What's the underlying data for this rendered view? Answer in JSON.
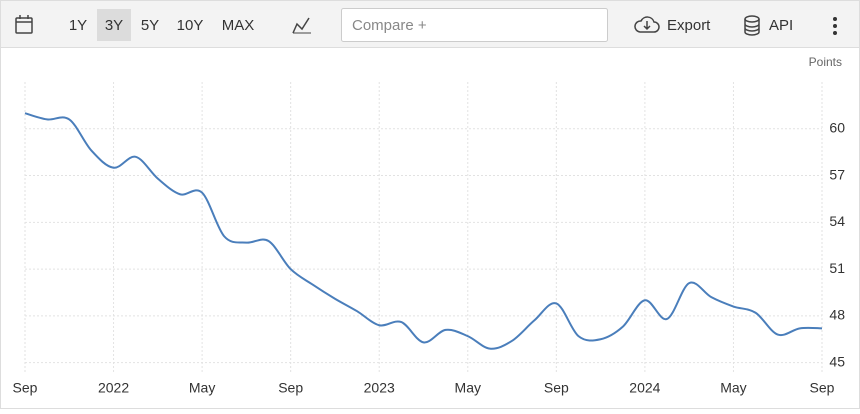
{
  "toolbar": {
    "ranges": [
      "1Y",
      "3Y",
      "5Y",
      "10Y",
      "MAX"
    ],
    "active_range": 1,
    "compare": "Compare +",
    "export": "Export",
    "api": "API"
  },
  "chart_data": {
    "type": "line",
    "unit": "Points",
    "categories": [
      "Sep",
      null,
      null,
      null,
      "2022",
      null,
      null,
      null,
      "May",
      null,
      null,
      null,
      "Sep",
      null,
      null,
      null,
      "2023",
      null,
      null,
      null,
      "May",
      null,
      null,
      null,
      "Sep",
      null,
      null,
      null,
      "2024",
      null,
      null,
      null,
      "May",
      null,
      null,
      null,
      "Sep"
    ],
    "series": [
      {
        "name": "Points",
        "color": "#4a7ebb",
        "values": [
          61.0,
          60.6,
          60.6,
          58.6,
          57.5,
          58.2,
          56.8,
          55.8,
          55.9,
          53.1,
          52.7,
          52.8,
          51.0,
          50.0,
          49.1,
          48.3,
          47.4,
          47.6,
          46.3,
          47.1,
          46.7,
          45.9,
          46.4,
          47.7,
          48.8,
          46.7,
          46.5,
          47.3,
          49.0,
          47.8,
          50.1,
          49.2,
          48.6,
          48.2,
          46.8,
          47.2,
          47.2
        ]
      }
    ],
    "ylim": [
      44.4,
      63
    ],
    "yticks": [
      45,
      48,
      51,
      54,
      57,
      60
    ],
    "grid": true
  }
}
